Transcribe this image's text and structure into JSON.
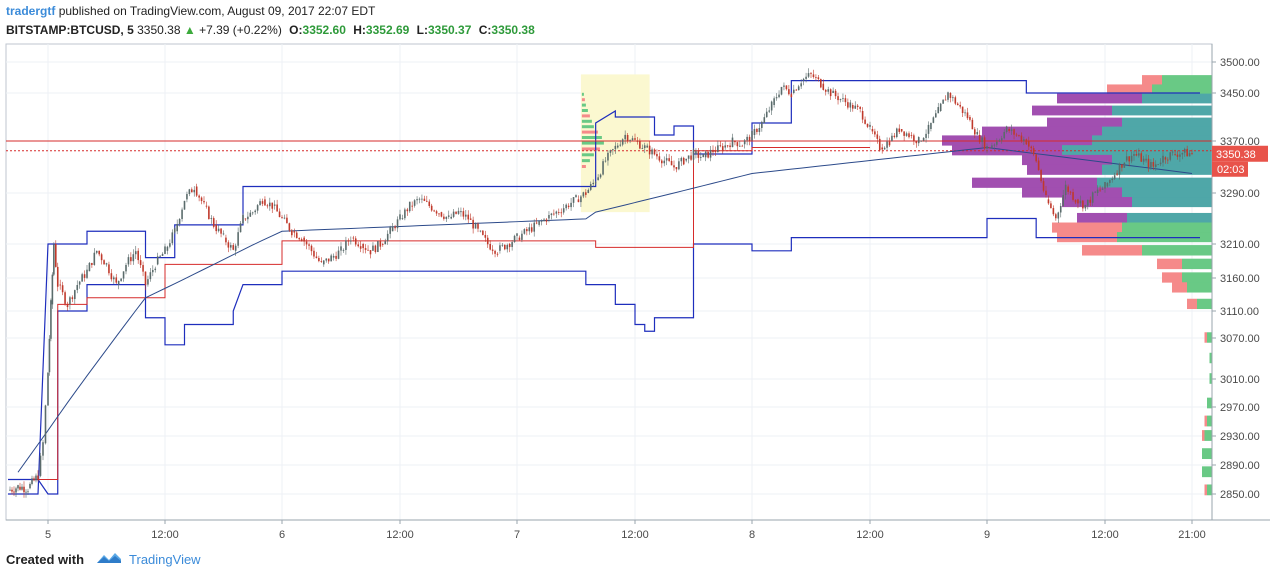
{
  "header": {
    "author": "tradergtf",
    "published": "published on TradingView.com, August 09, 2017 22:07 EDT",
    "symbol": "BITSTAMP:BTCUSD, 5",
    "last": "3350.38",
    "change_arrow": "▲",
    "change": "+7.39 (+0.22%)",
    "o_label": "O:",
    "o_value": "3352.60",
    "h_label": "H:",
    "h_value": "3352.69",
    "l_label": "L:",
    "l_value": "3350.37",
    "c_label": "C:",
    "c_value": "3350.38"
  },
  "footer": {
    "created_with": "Created with",
    "brand": "TradingView"
  },
  "price_badge": {
    "value": "3350.38",
    "countdown": "02:03"
  },
  "colors": {
    "grid": "#eef1f5",
    "candle_up": "#5a6b6b",
    "candle_down": "#c0392b",
    "channel": "#1e2ebd",
    "level": "#d62b2b",
    "vwap": "#2c4a8a",
    "vp_up": "#69c985",
    "vp_down": "#f58a8a",
    "vp_up_va": "#4fa7a8",
    "vp_down_va": "#a14fb0",
    "badge_red": "#e8534a",
    "highlight": "#fbf8d0"
  },
  "chart_data": {
    "type": "candlestick",
    "symbol": "BITSTAMP:BTCUSD",
    "interval": "5",
    "ylim": [
      2830,
      3530
    ],
    "y_ticks": [
      3500.0,
      3450.0,
      3370.0,
      3290.0,
      3210.0,
      3160.0,
      3110.0,
      3070.0,
      3010.0,
      2970.0,
      2930.0,
      2890.0,
      2850.0
    ],
    "y_tick_labels": [
      "3500.00",
      "3450.00",
      "3370.00",
      "3290.00",
      "3210.00",
      "3160.00",
      "3110.00",
      "3070.00",
      "3010.00",
      "2970.00",
      "2930.00",
      "2890.00",
      "2850.00"
    ],
    "x_ticks": [
      "5",
      "12:00",
      "6",
      "12:00",
      "7",
      "12:00",
      "8",
      "12:00",
      "9",
      "12:00",
      "21:00"
    ],
    "x_tick_hours": [
      0,
      12,
      24,
      36,
      48,
      60,
      72,
      84,
      96,
      108,
      117
    ],
    "x_range_hours": [
      -4,
      118
    ],
    "price_path": [
      [
        -4,
        2855
      ],
      [
        -3,
        2860
      ],
      [
        -2,
        2858
      ],
      [
        -1,
        2875
      ],
      [
        -0.5,
        2920
      ],
      [
        0,
        3020
      ],
      [
        0.3,
        3120
      ],
      [
        0.6,
        3210
      ],
      [
        1,
        3150
      ],
      [
        2,
        3120
      ],
      [
        3,
        3150
      ],
      [
        4,
        3170
      ],
      [
        5,
        3200
      ],
      [
        6,
        3180
      ],
      [
        7,
        3150
      ],
      [
        8,
        3180
      ],
      [
        9,
        3200
      ],
      [
        10,
        3150
      ],
      [
        11,
        3180
      ],
      [
        12,
        3200
      ],
      [
        13,
        3230
      ],
      [
        14,
        3280
      ],
      [
        15,
        3300
      ],
      [
        16,
        3270
      ],
      [
        17,
        3240
      ],
      [
        18,
        3220
      ],
      [
        19,
        3200
      ],
      [
        20,
        3250
      ],
      [
        21,
        3260
      ],
      [
        22,
        3280
      ],
      [
        23,
        3270
      ],
      [
        24,
        3250
      ],
      [
        25,
        3230
      ],
      [
        26,
        3220
      ],
      [
        27,
        3200
      ],
      [
        28,
        3180
      ],
      [
        29,
        3190
      ],
      [
        30,
        3200
      ],
      [
        31,
        3220
      ],
      [
        32,
        3210
      ],
      [
        33,
        3200
      ],
      [
        34,
        3210
      ],
      [
        35,
        3230
      ],
      [
        36,
        3250
      ],
      [
        37,
        3270
      ],
      [
        38,
        3280
      ],
      [
        39,
        3270
      ],
      [
        40,
        3260
      ],
      [
        41,
        3250
      ],
      [
        42,
        3260
      ],
      [
        43,
        3250
      ],
      [
        44,
        3230
      ],
      [
        45,
        3210
      ],
      [
        46,
        3200
      ],
      [
        47,
        3210
      ],
      [
        48,
        3220
      ],
      [
        49,
        3230
      ],
      [
        50,
        3240
      ],
      [
        51,
        3250
      ],
      [
        52,
        3260
      ],
      [
        53,
        3270
      ],
      [
        54,
        3280
      ],
      [
        55,
        3290
      ],
      [
        56,
        3310
      ],
      [
        57,
        3340
      ],
      [
        58,
        3360
      ],
      [
        59,
        3380
      ],
      [
        60,
        3370
      ],
      [
        61,
        3360
      ],
      [
        62,
        3350
      ],
      [
        63,
        3340
      ],
      [
        64,
        3330
      ],
      [
        65,
        3340
      ],
      [
        66,
        3350
      ],
      [
        67,
        3345
      ],
      [
        68,
        3355
      ],
      [
        69,
        3360
      ],
      [
        70,
        3370
      ],
      [
        71,
        3365
      ],
      [
        72,
        3380
      ],
      [
        73,
        3400
      ],
      [
        74,
        3430
      ],
      [
        75,
        3460
      ],
      [
        76,
        3450
      ],
      [
        77,
        3470
      ],
      [
        78,
        3480
      ],
      [
        79,
        3465
      ],
      [
        80,
        3450
      ],
      [
        81,
        3440
      ],
      [
        82,
        3430
      ],
      [
        83,
        3420
      ],
      [
        84,
        3390
      ],
      [
        85,
        3360
      ],
      [
        86,
        3370
      ],
      [
        87,
        3390
      ],
      [
        88,
        3380
      ],
      [
        89,
        3370
      ],
      [
        90,
        3390
      ],
      [
        91,
        3420
      ],
      [
        92,
        3450
      ],
      [
        93,
        3430
      ],
      [
        94,
        3410
      ],
      [
        95,
        3380
      ],
      [
        96,
        3360
      ],
      [
        97,
        3370
      ],
      [
        98,
        3390
      ],
      [
        99,
        3380
      ],
      [
        100,
        3370
      ],
      [
        101,
        3340
      ],
      [
        102,
        3280
      ],
      [
        103,
        3250
      ],
      [
        104,
        3300
      ],
      [
        105,
        3280
      ],
      [
        106,
        3270
      ],
      [
        107,
        3290
      ],
      [
        108,
        3300
      ],
      [
        109,
        3320
      ],
      [
        110,
        3340
      ],
      [
        111,
        3350
      ],
      [
        112,
        3340
      ],
      [
        113,
        3330
      ],
      [
        114,
        3345
      ],
      [
        115,
        3350
      ],
      [
        116,
        3352
      ],
      [
        117,
        3350.38
      ]
    ],
    "volume_profile_main": [
      {
        "price": 3470,
        "up": 10,
        "down": 4
      },
      {
        "price": 3455,
        "up": 12,
        "down": 9
      },
      {
        "price": 3440,
        "up": 14,
        "down": 17
      },
      {
        "price": 3420,
        "up": 20,
        "down": 16
      },
      {
        "price": 3400,
        "up": 18,
        "down": 15
      },
      {
        "price": 3385,
        "up": 22,
        "down": 24
      },
      {
        "price": 3370,
        "up": 24,
        "down": 30
      },
      {
        "price": 3355,
        "up": 30,
        "down": 22
      },
      {
        "price": 3340,
        "up": 20,
        "down": 18
      },
      {
        "price": 3325,
        "up": 22,
        "down": 15
      },
      {
        "price": 3305,
        "up": 23,
        "down": 25
      },
      {
        "price": 3290,
        "up": 18,
        "down": 20
      },
      {
        "price": 3275,
        "up": 16,
        "down": 14
      },
      {
        "price": 3250,
        "up": 17,
        "down": 10
      },
      {
        "price": 3235,
        "up": 18,
        "down": 14
      },
      {
        "price": 3220,
        "up": 19,
        "down": 12
      },
      {
        "price": 3200,
        "up": 14,
        "down": 12
      },
      {
        "price": 3180,
        "up": 6,
        "down": 5
      },
      {
        "price": 3160,
        "up": 6,
        "down": 4
      },
      {
        "price": 3145,
        "up": 5,
        "down": 3
      },
      {
        "price": 3120,
        "up": 3,
        "down": 2
      },
      {
        "price": 3070,
        "up": 1,
        "down": 0.5
      },
      {
        "price": 3040,
        "up": 0.5,
        "down": 0
      },
      {
        "price": 3010,
        "up": 0.5,
        "down": 0
      },
      {
        "price": 2975,
        "up": 1,
        "down": 0
      },
      {
        "price": 2950,
        "up": 1,
        "down": 0.5
      },
      {
        "price": 2930,
        "up": 1.5,
        "down": 0.5
      },
      {
        "price": 2905,
        "up": 2,
        "down": 0
      },
      {
        "price": 2880,
        "up": 2,
        "down": 0
      },
      {
        "price": 2855,
        "up": 1,
        "down": 0.5
      }
    ],
    "levels": [
      3370,
      3355
    ],
    "last_price": 3350.38
  }
}
